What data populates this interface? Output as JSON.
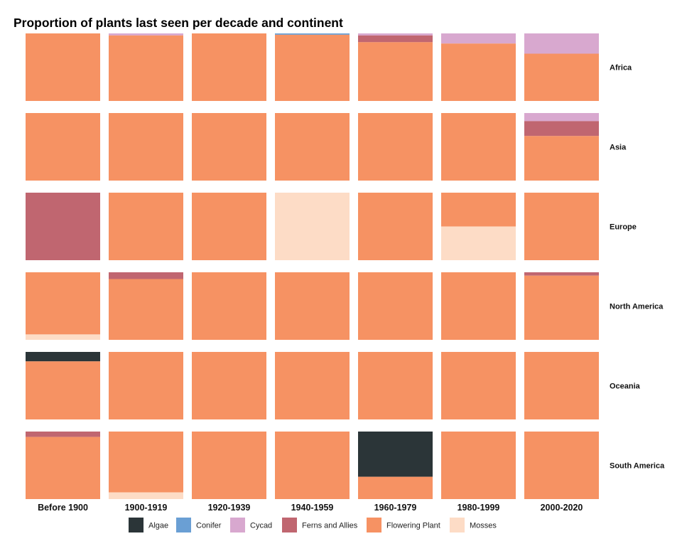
{
  "chart_data": {
    "type": "bar",
    "subtype": "faceted-stacked-proportion",
    "title": "Proportion of plants last seen per decade and continent",
    "columns": [
      "Before 1900",
      "1900-1919",
      "1920-1939",
      "1940-1959",
      "1960-1979",
      "1980-1999",
      "2000-2020"
    ],
    "rows": [
      "Africa",
      "Asia",
      "Europe",
      "North America",
      "Oceania",
      "South America"
    ],
    "categories": [
      "Algae",
      "Conifer",
      "Cycad",
      "Ferns and Allies",
      "Flowering Plant",
      "Mosses"
    ],
    "colors": {
      "Algae": "#2b3538",
      "Conifer": "#6a9fd4",
      "Cycad": "#d8a8cf",
      "Ferns and Allies": "#c06670",
      "Flowering Plant": "#f69263",
      "Mosses": "#fddcc6"
    },
    "stack_order_top_to_bottom": [
      "Algae",
      "Conifer",
      "Cycad",
      "Ferns and Allies",
      "Flowering Plant",
      "Mosses"
    ],
    "ylim": [
      0,
      1
    ],
    "grid": false,
    "legend_position": "bottom",
    "cells": [
      {
        "row": "Africa",
        "column": "Before 1900",
        "proportions": {
          "Flowering Plant": 1.0
        }
      },
      {
        "row": "Africa",
        "column": "1900-1919",
        "proportions": {
          "Cycad": 0.03,
          "Flowering Plant": 0.97
        }
      },
      {
        "row": "Africa",
        "column": "1920-1939",
        "proportions": {
          "Flowering Plant": 1.0
        }
      },
      {
        "row": "Africa",
        "column": "1940-1959",
        "proportions": {
          "Conifer": 0.02,
          "Flowering Plant": 0.98
        }
      },
      {
        "row": "Africa",
        "column": "1960-1979",
        "proportions": {
          "Cycad": 0.03,
          "Ferns and Allies": 0.1,
          "Flowering Plant": 0.87
        }
      },
      {
        "row": "Africa",
        "column": "1980-1999",
        "proportions": {
          "Cycad": 0.15,
          "Flowering Plant": 0.85
        }
      },
      {
        "row": "Africa",
        "column": "2000-2020",
        "proportions": {
          "Cycad": 0.3,
          "Flowering Plant": 0.7
        }
      },
      {
        "row": "Asia",
        "column": "Before 1900",
        "proportions": {
          "Flowering Plant": 1.0
        }
      },
      {
        "row": "Asia",
        "column": "1900-1919",
        "proportions": {
          "Flowering Plant": 1.0
        }
      },
      {
        "row": "Asia",
        "column": "1920-1939",
        "proportions": {
          "Flowering Plant": 1.0
        }
      },
      {
        "row": "Asia",
        "column": "1940-1959",
        "proportions": {
          "Flowering Plant": 1.0
        }
      },
      {
        "row": "Asia",
        "column": "1960-1979",
        "proportions": {
          "Flowering Plant": 1.0
        }
      },
      {
        "row": "Asia",
        "column": "1980-1999",
        "proportions": {
          "Flowering Plant": 1.0
        }
      },
      {
        "row": "Asia",
        "column": "2000-2020",
        "proportions": {
          "Cycad": 0.12,
          "Ferns and Allies": 0.22,
          "Flowering Plant": 0.66
        }
      },
      {
        "row": "Europe",
        "column": "Before 1900",
        "proportions": {
          "Ferns and Allies": 1.0
        }
      },
      {
        "row": "Europe",
        "column": "1900-1919",
        "proportions": {
          "Flowering Plant": 1.0
        }
      },
      {
        "row": "Europe",
        "column": "1920-1939",
        "proportions": {
          "Flowering Plant": 1.0
        }
      },
      {
        "row": "Europe",
        "column": "1940-1959",
        "proportions": {
          "Mosses": 1.0
        }
      },
      {
        "row": "Europe",
        "column": "1960-1979",
        "proportions": {
          "Flowering Plant": 1.0
        }
      },
      {
        "row": "Europe",
        "column": "1980-1999",
        "proportions": {
          "Flowering Plant": 0.5,
          "Mosses": 0.5
        }
      },
      {
        "row": "Europe",
        "column": "2000-2020",
        "proportions": {
          "Flowering Plant": 1.0
        }
      },
      {
        "row": "North America",
        "column": "Before 1900",
        "proportions": {
          "Flowering Plant": 0.92,
          "Mosses": 0.08
        }
      },
      {
        "row": "North America",
        "column": "1900-1919",
        "proportions": {
          "Ferns and Allies": 0.1,
          "Flowering Plant": 0.9
        }
      },
      {
        "row": "North America",
        "column": "1920-1939",
        "proportions": {
          "Flowering Plant": 1.0
        }
      },
      {
        "row": "North America",
        "column": "1940-1959",
        "proportions": {
          "Flowering Plant": 1.0
        }
      },
      {
        "row": "North America",
        "column": "1960-1979",
        "proportions": {
          "Flowering Plant": 1.0
        }
      },
      {
        "row": "North America",
        "column": "1980-1999",
        "proportions": {
          "Flowering Plant": 1.0
        }
      },
      {
        "row": "North America",
        "column": "2000-2020",
        "proportions": {
          "Ferns and Allies": 0.05,
          "Flowering Plant": 0.95
        }
      },
      {
        "row": "Oceania",
        "column": "Before 1900",
        "proportions": {
          "Algae": 0.14,
          "Flowering Plant": 0.86
        }
      },
      {
        "row": "Oceania",
        "column": "1900-1919",
        "proportions": {
          "Flowering Plant": 1.0
        }
      },
      {
        "row": "Oceania",
        "column": "1920-1939",
        "proportions": {
          "Flowering Plant": 1.0
        }
      },
      {
        "row": "Oceania",
        "column": "1940-1959",
        "proportions": {
          "Flowering Plant": 1.0
        }
      },
      {
        "row": "Oceania",
        "column": "1960-1979",
        "proportions": {
          "Flowering Plant": 1.0
        }
      },
      {
        "row": "Oceania",
        "column": "1980-1999",
        "proportions": {
          "Flowering Plant": 1.0
        }
      },
      {
        "row": "Oceania",
        "column": "2000-2020",
        "proportions": {
          "Flowering Plant": 1.0
        }
      },
      {
        "row": "South America",
        "column": "Before 1900",
        "proportions": {
          "Ferns and Allies": 0.08,
          "Flowering Plant": 0.92
        }
      },
      {
        "row": "South America",
        "column": "1900-1919",
        "proportions": {
          "Flowering Plant": 0.9,
          "Mosses": 0.1
        }
      },
      {
        "row": "South America",
        "column": "1920-1939",
        "proportions": {
          "Flowering Plant": 1.0
        }
      },
      {
        "row": "South America",
        "column": "1940-1959",
        "proportions": {
          "Flowering Plant": 1.0
        }
      },
      {
        "row": "South America",
        "column": "1960-1979",
        "proportions": {
          "Algae": 0.67,
          "Flowering Plant": 0.33
        }
      },
      {
        "row": "South America",
        "column": "1980-1999",
        "proportions": {
          "Flowering Plant": 1.0
        }
      },
      {
        "row": "South America",
        "column": "2000-2020",
        "proportions": {
          "Flowering Plant": 1.0
        }
      }
    ]
  }
}
